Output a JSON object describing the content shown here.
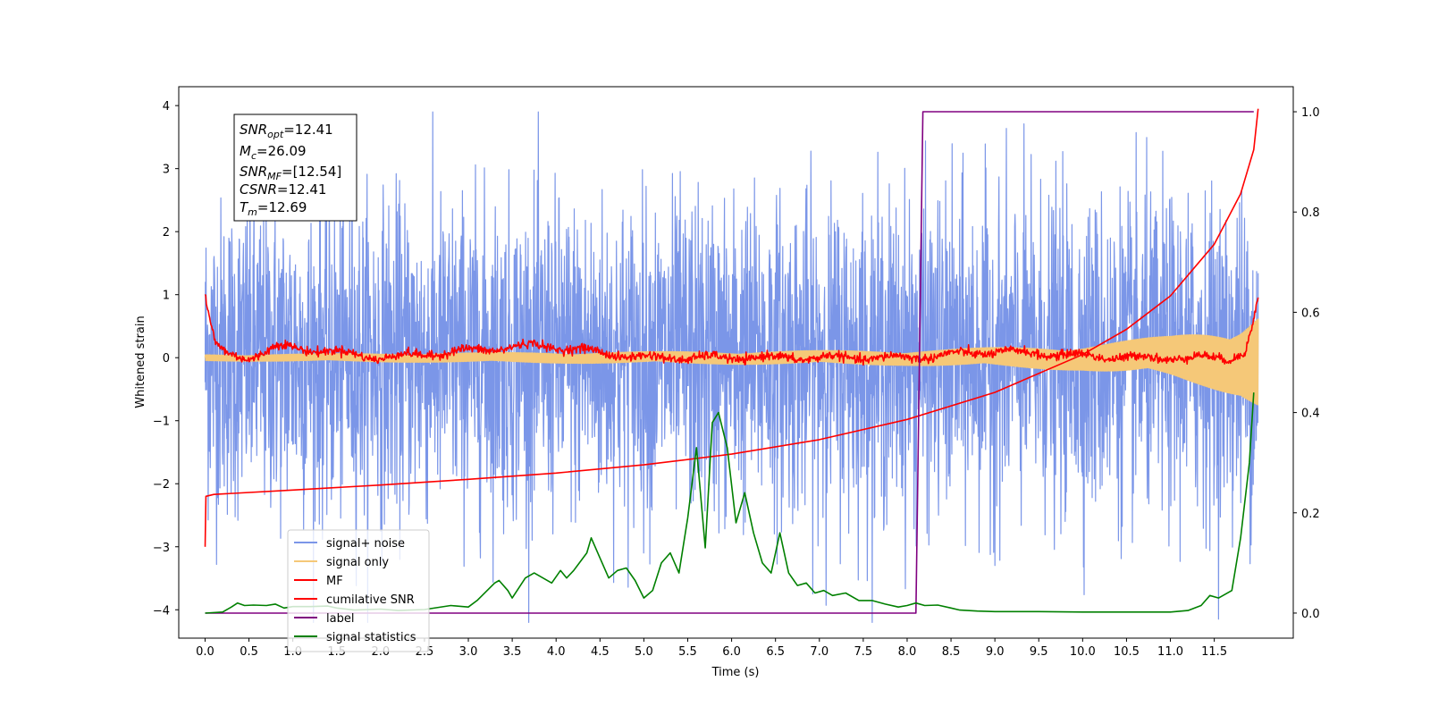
{
  "chart_data": {
    "type": "line",
    "xlabel": "Time (s)",
    "ylabel_left": "Whitened strain",
    "xlim": [
      -0.3,
      12.4
    ],
    "ylim_left": [
      -4.45,
      4.3
    ],
    "ylim_right": [
      -0.05,
      1.05
    ],
    "x_ticks": [
      0.0,
      0.5,
      1.0,
      1.5,
      2.0,
      2.5,
      3.0,
      3.5,
      4.0,
      4.5,
      5.0,
      5.5,
      6.0,
      6.5,
      7.0,
      7.5,
      8.0,
      8.5,
      9.0,
      9.5,
      10.0,
      10.5,
      11.0,
      11.5
    ],
    "x_tick_labels": [
      "0.0",
      "0.5",
      "1.0",
      "1.5",
      "2.0",
      "2.5",
      "3.0",
      "3.5",
      "4.0",
      "4.5",
      "5.0",
      "5.5",
      "6.0",
      "6.5",
      "7.0",
      "7.5",
      "8.0",
      "8.5",
      "9.0",
      "9.5",
      "10.0",
      "10.5",
      "11.0",
      "11.5"
    ],
    "y_left_ticks": [
      4,
      3,
      2,
      1,
      0,
      -1,
      -2,
      -3,
      -4
    ],
    "y_left_tick_labels": [
      "4",
      "3",
      "2",
      "1",
      "0",
      "−1",
      "−2",
      "−3",
      "−4"
    ],
    "y_right_ticks": [
      1.0,
      0.8,
      0.6,
      0.4,
      0.2,
      0.0
    ],
    "y_right_tick_labels": [
      "1.0",
      "0.8",
      "0.6",
      "0.4",
      "0.2",
      "0.0"
    ],
    "legend_position": "lower-left",
    "grid": false,
    "info_box": {
      "snr_opt": {
        "sym": "SNR",
        "sub": "opt",
        "value": "=12.41"
      },
      "mc": {
        "sym": "M",
        "sub": "c",
        "value": "=26.09"
      },
      "snr_mf": {
        "sym": "SNR",
        "sub": "MF",
        "value": "=[12.54]"
      },
      "csnr": {
        "sym": "CSNR",
        "sub": "",
        "value": "=12.41"
      },
      "tm": {
        "sym": "T",
        "sub": "m",
        "value": "=12.69"
      }
    },
    "series": [
      {
        "name": "signal+ noise",
        "axis": "left",
        "color": "#7b96e8",
        "style": "noise",
        "x_range": [
          0.0,
          12.0
        ],
        "amplitude": 1.25,
        "clip": [
          -4.2,
          3.9
        ]
      },
      {
        "name": "signal only",
        "axis": "left",
        "color": "#f5c878",
        "style": "chirp",
        "x_range": [
          0.0,
          12.0
        ],
        "envelope": [
          [
            0.0,
            0.05
          ],
          [
            8.0,
            0.12
          ],
          [
            10.0,
            0.2
          ],
          [
            11.0,
            0.35
          ],
          [
            11.8,
            0.6
          ],
          [
            12.0,
            0.8
          ]
        ]
      },
      {
        "name": "MF",
        "axis": "left",
        "color": "#ff0000",
        "style": "mf",
        "points": [
          [
            0.0,
            1.0
          ],
          [
            0.05,
            0.6
          ],
          [
            0.12,
            0.2
          ],
          [
            0.25,
            0.05
          ],
          [
            0.5,
            0.0
          ],
          [
            0.85,
            0.18
          ],
          [
            1.3,
            0.12
          ],
          [
            2.0,
            0.0
          ],
          [
            3.8,
            0.2
          ],
          [
            5.0,
            0.0
          ],
          [
            8.0,
            0.0
          ],
          [
            9.0,
            0.1
          ],
          [
            10.5,
            0.0
          ],
          [
            11.7,
            0.0
          ],
          [
            11.85,
            0.1
          ],
          [
            11.93,
            0.45
          ],
          [
            12.0,
            0.95
          ]
        ]
      },
      {
        "name": "cumilative SNR",
        "axis": "left",
        "color": "#ff0000",
        "style": "line",
        "points": [
          [
            0.0,
            -3.0
          ],
          [
            0.01,
            -2.2
          ],
          [
            0.1,
            -2.17
          ],
          [
            1.0,
            -2.1
          ],
          [
            2.0,
            -2.02
          ],
          [
            3.0,
            -1.93
          ],
          [
            4.0,
            -1.83
          ],
          [
            5.0,
            -1.7
          ],
          [
            6.0,
            -1.53
          ],
          [
            7.0,
            -1.3
          ],
          [
            8.0,
            -0.98
          ],
          [
            9.0,
            -0.55
          ],
          [
            10.0,
            0.05
          ],
          [
            10.5,
            0.45
          ],
          [
            11.0,
            0.98
          ],
          [
            11.5,
            1.8
          ],
          [
            11.8,
            2.6
          ],
          [
            11.95,
            3.3
          ],
          [
            12.0,
            3.95
          ]
        ]
      },
      {
        "name": "label",
        "axis": "right",
        "color": "#800080",
        "style": "line",
        "points": [
          [
            0.0,
            0.0
          ],
          [
            8.1,
            0.0
          ],
          [
            8.18,
            1.0
          ],
          [
            11.95,
            1.0
          ]
        ]
      },
      {
        "name": "signal statistics",
        "axis": "right",
        "color": "#008000",
        "style": "line",
        "points": [
          [
            0.0,
            0.0
          ],
          [
            0.2,
            0.002
          ],
          [
            0.3,
            0.012
          ],
          [
            0.37,
            0.02
          ],
          [
            0.45,
            0.015
          ],
          [
            0.55,
            0.016
          ],
          [
            0.7,
            0.015
          ],
          [
            0.8,
            0.018
          ],
          [
            0.9,
            0.01
          ],
          [
            1.0,
            0.013
          ],
          [
            1.2,
            0.013
          ],
          [
            1.4,
            0.014
          ],
          [
            1.5,
            0.01
          ],
          [
            1.7,
            0.006
          ],
          [
            2.0,
            0.008
          ],
          [
            2.2,
            0.005
          ],
          [
            2.5,
            0.007
          ],
          [
            2.8,
            0.015
          ],
          [
            3.0,
            0.012
          ],
          [
            3.1,
            0.025
          ],
          [
            3.3,
            0.06
          ],
          [
            3.35,
            0.065
          ],
          [
            3.45,
            0.045
          ],
          [
            3.5,
            0.03
          ],
          [
            3.65,
            0.07
          ],
          [
            3.75,
            0.08
          ],
          [
            3.85,
            0.07
          ],
          [
            3.95,
            0.06
          ],
          [
            4.05,
            0.085
          ],
          [
            4.12,
            0.07
          ],
          [
            4.2,
            0.085
          ],
          [
            4.35,
            0.12
          ],
          [
            4.4,
            0.15
          ],
          [
            4.5,
            0.11
          ],
          [
            4.6,
            0.07
          ],
          [
            4.7,
            0.085
          ],
          [
            4.8,
            0.09
          ],
          [
            4.9,
            0.065
          ],
          [
            5.0,
            0.03
          ],
          [
            5.1,
            0.045
          ],
          [
            5.2,
            0.1
          ],
          [
            5.3,
            0.12
          ],
          [
            5.4,
            0.08
          ],
          [
            5.5,
            0.19
          ],
          [
            5.6,
            0.33
          ],
          [
            5.7,
            0.13
          ],
          [
            5.78,
            0.38
          ],
          [
            5.85,
            0.4
          ],
          [
            5.95,
            0.33
          ],
          [
            6.05,
            0.18
          ],
          [
            6.15,
            0.24
          ],
          [
            6.25,
            0.16
          ],
          [
            6.35,
            0.1
          ],
          [
            6.45,
            0.08
          ],
          [
            6.55,
            0.16
          ],
          [
            6.65,
            0.08
          ],
          [
            6.75,
            0.055
          ],
          [
            6.85,
            0.06
          ],
          [
            6.95,
            0.04
          ],
          [
            7.05,
            0.045
          ],
          [
            7.15,
            0.035
          ],
          [
            7.3,
            0.04
          ],
          [
            7.45,
            0.025
          ],
          [
            7.6,
            0.025
          ],
          [
            7.75,
            0.018
          ],
          [
            7.9,
            0.012
          ],
          [
            8.0,
            0.015
          ],
          [
            8.1,
            0.02
          ],
          [
            8.2,
            0.015
          ],
          [
            8.35,
            0.016
          ],
          [
            8.5,
            0.01
          ],
          [
            8.6,
            0.006
          ],
          [
            8.8,
            0.004
          ],
          [
            9.0,
            0.003
          ],
          [
            9.5,
            0.003
          ],
          [
            10.0,
            0.002
          ],
          [
            10.5,
            0.002
          ],
          [
            11.0,
            0.002
          ],
          [
            11.2,
            0.005
          ],
          [
            11.35,
            0.015
          ],
          [
            11.45,
            0.035
          ],
          [
            11.55,
            0.03
          ],
          [
            11.7,
            0.045
          ],
          [
            11.8,
            0.15
          ],
          [
            11.9,
            0.3
          ],
          [
            11.95,
            0.44
          ]
        ]
      }
    ]
  }
}
